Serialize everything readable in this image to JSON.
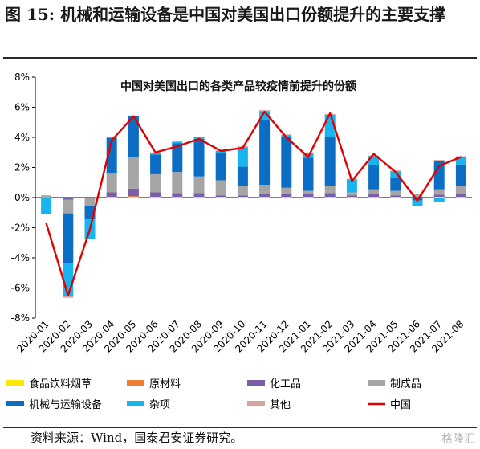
{
  "figure": {
    "title": "图 15: 机械和运输设备是中国对美国出口份额提升的主要支撑",
    "source": "资料来源：Wind，国泰君安证券研究。",
    "watermark": "格隆汇"
  },
  "chart_data": {
    "type": "bar",
    "title": "中国对美国出口的各类产品较疫情前提升的份额",
    "categories": [
      "2020-01",
      "2020-02",
      "2020-03",
      "2020-04",
      "2020-05",
      "2020-06",
      "2020-07",
      "2020-08",
      "2020-09",
      "2020-10",
      "2020-11",
      "2020-12",
      "2021-01",
      "2021-02",
      "2021-03",
      "2021-04",
      "2021-05",
      "2021-06",
      "2021-07",
      "2021-08"
    ],
    "ylim": [
      -8,
      8
    ],
    "yticks": [
      "-8%",
      "-6%",
      "-4%",
      "-2%",
      "0%",
      "2%",
      "4%",
      "6%",
      "8%"
    ],
    "stacked": true,
    "series": [
      {
        "name": "食品饮料烟草",
        "color": "#FFE600",
        "values": [
          0,
          -0.05,
          0,
          0.05,
          0.05,
          0.05,
          0.05,
          0.05,
          0.05,
          0.05,
          0.05,
          0.05,
          0.05,
          0.05,
          0.05,
          0.05,
          0.05,
          0,
          0.05,
          0.05
        ]
      },
      {
        "name": "原材料",
        "color": "#ED7D31",
        "values": [
          0,
          0,
          0,
          0,
          0.05,
          0,
          0,
          0,
          0,
          0,
          0,
          0,
          0,
          0,
          0,
          0,
          0,
          0,
          0,
          0
        ]
      },
      {
        "name": "化工品",
        "color": "#7B5EA7",
        "values": [
          0,
          -0.1,
          -0.05,
          0.3,
          0.5,
          0.3,
          0.25,
          0.25,
          0.1,
          0.1,
          0.2,
          0.2,
          0.2,
          0.25,
          0.1,
          0.2,
          0.1,
          0.05,
          0.15,
          0.2
        ]
      },
      {
        "name": "制成品",
        "color": "#A5A5A5",
        "values": [
          0.15,
          -0.9,
          -0.5,
          1.3,
          2.1,
          1.2,
          1.4,
          1.1,
          1.0,
          0.6,
          0.6,
          0.4,
          0.2,
          0.5,
          0.2,
          0.3,
          0.3,
          0.2,
          0.35,
          0.55
        ]
      },
      {
        "name": "机械与运输设备",
        "color": "#0B6EC4",
        "values": [
          0,
          -3.3,
          -0.9,
          2.3,
          2.7,
          1.3,
          1.9,
          2.5,
          1.8,
          1.3,
          4.3,
          3.4,
          2.2,
          3.2,
          0,
          1.6,
          0.9,
          -0.2,
          1.9,
          1.4
        ]
      },
      {
        "name": "杂项",
        "color": "#17B4F0",
        "values": [
          -1.1,
          -2.2,
          -1.3,
          0.05,
          0,
          0.1,
          0.1,
          0.1,
          0.15,
          1.3,
          0.6,
          0.1,
          0.3,
          1.5,
          0.85,
          0.6,
          0.4,
          -0.35,
          -0.3,
          0.5
        ]
      },
      {
        "name": "其他",
        "color": "#D4A29C",
        "values": [
          0,
          -0.1,
          0,
          0.05,
          0.05,
          0.05,
          0.05,
          0.05,
          0.05,
          0.05,
          0.05,
          0.05,
          0.05,
          0.05,
          0.05,
          0.05,
          0.05,
          0,
          0.05,
          0.05
        ]
      }
    ],
    "line": {
      "name": "中国",
      "color": "#E00000",
      "values": [
        -1.7,
        -6.5,
        -2.1,
        3.8,
        5.4,
        3.0,
        3.4,
        3.9,
        3.1,
        3.3,
        5.7,
        4.0,
        2.7,
        5.6,
        1.1,
        2.9,
        1.7,
        -0.2,
        2.1,
        2.7
      ]
    },
    "legend_position": "bottom",
    "grid": false
  }
}
